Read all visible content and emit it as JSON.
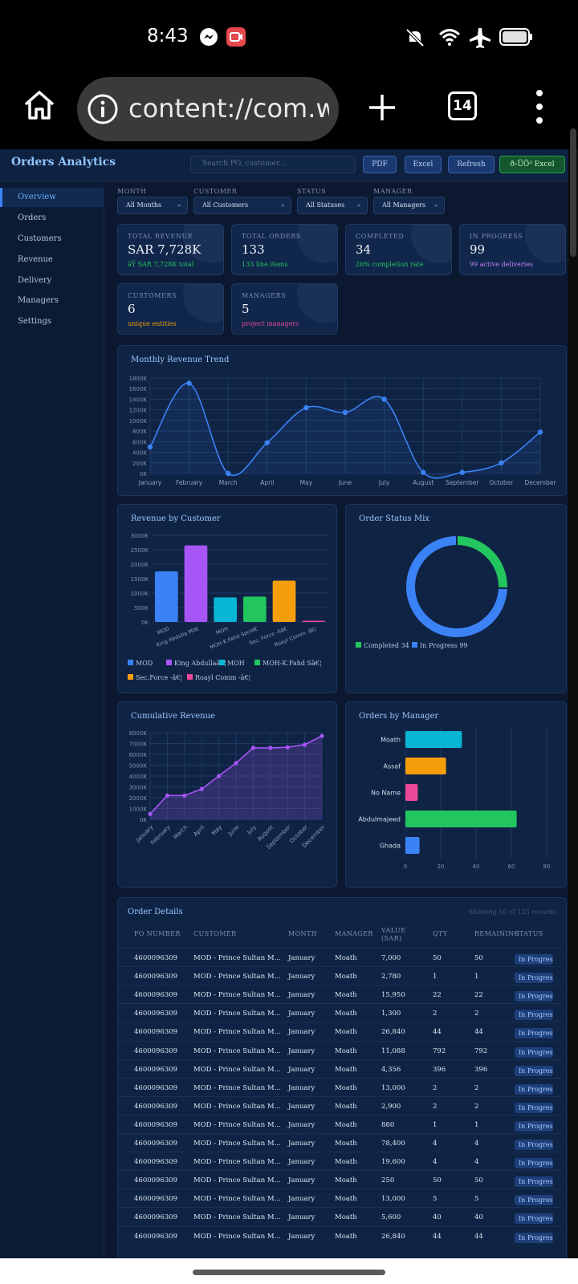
{
  "status_bar": {
    "time": "8:43"
  },
  "browser": {
    "url": "content://com.wh",
    "tab_count": "14"
  },
  "app": {
    "title": "Orders Analytics",
    "search_placeholder": "Search PO, customer...",
    "buttons": {
      "pdf": "PDF",
      "excel": "Excel",
      "refresh": "Refresh",
      "export_excel": "ð›ÜÖ³ Excel"
    }
  },
  "sidebar": {
    "items": [
      {
        "label": "Overview",
        "active": true
      },
      {
        "label": "Orders"
      },
      {
        "label": "Customers"
      },
      {
        "label": "Revenue"
      },
      {
        "label": "Delivery"
      },
      {
        "label": "Managers"
      },
      {
        "label": "Settings"
      }
    ]
  },
  "filters": {
    "month": {
      "label": "MONTH",
      "value": "All Months"
    },
    "customer": {
      "label": "CUSTOMER",
      "value": "All Customers"
    },
    "status": {
      "label": "STATUS",
      "value": "All Statuses"
    },
    "manager": {
      "label": "MANAGER",
      "value": "All Managers"
    }
  },
  "kpis": [
    {
      "label": "TOTAL REVENUE",
      "value": "SAR 7,728K",
      "sub": "âŸ SAR 7,728K total",
      "color": "#22c55e"
    },
    {
      "label": "TOTAL ORDERS",
      "value": "133",
      "sub": "133 line items",
      "color": "#22c55e"
    },
    {
      "label": "COMPLETED",
      "value": "34",
      "sub": "26% completion rate",
      "color": "#22c55e"
    },
    {
      "label": "IN PROGRESS",
      "value": "99",
      "sub": "99 active deliveries",
      "color": "#c084fc"
    },
    {
      "label": "CUSTOMERS",
      "value": "6",
      "sub": "unique entities",
      "color": "#f59e0b"
    },
    {
      "label": "MANAGERS",
      "value": "5",
      "sub": "project managers",
      "color": "#ec4899"
    }
  ],
  "chart_data": [
    {
      "type": "line",
      "title": "Monthly Revenue Trend",
      "x": [
        "January",
        "February",
        "March",
        "April",
        "May",
        "June",
        "July",
        "August",
        "September",
        "October",
        "December"
      ],
      "y": [
        500,
        1700,
        0,
        580,
        1240,
        1150,
        1400,
        20,
        20,
        200,
        780
      ],
      "yticks": [
        "0K",
        "200K",
        "400K",
        "600K",
        "800K",
        "1000K",
        "1200K",
        "1400K",
        "1600K",
        "1800K"
      ],
      "ylim": [
        0,
        1800
      ],
      "color": "#3b82f6"
    },
    {
      "type": "bar",
      "title": "Revenue by Customer",
      "categories": [
        "MOD",
        "King Abdulla Mil€",
        "MOH",
        "MOH-K.Fahd Spcld€",
        "Sec. Force -Sâ€",
        "Roayl Comm -â€¦"
      ],
      "values": [
        1750,
        2650,
        850,
        880,
        1430,
        40
      ],
      "colors": [
        "#3b82f6",
        "#a855f7",
        "#06b6d4",
        "#22c55e",
        "#f59e0b",
        "#ec4899"
      ],
      "yticks": [
        "0K",
        "500K",
        "1000K",
        "1500K",
        "2000K",
        "2500K",
        "3000K"
      ],
      "ylim": [
        0,
        3000
      ],
      "legend": [
        "MOD",
        "King Abdullaâ€¦",
        "MOH",
        "MOH-K.Fahd Sâ€¦",
        "Sec.Force -â€¦",
        "Roayl Comm -â€¦"
      ]
    },
    {
      "type": "pie",
      "title": "Order Status Mix",
      "labels": [
        "Completed",
        "In Progress"
      ],
      "values": [
        34,
        99
      ],
      "colors": [
        "#22c55e",
        "#3b82f6"
      ],
      "legend": [
        "Completed 34",
        "In Progress 99"
      ]
    },
    {
      "type": "area",
      "title": "Cumulative Revenue",
      "x": [
        "January",
        "February",
        "March",
        "April",
        "May",
        "June",
        "July",
        "August",
        "September",
        "October",
        "December"
      ],
      "y": [
        500,
        2200,
        2200,
        2800,
        4000,
        5200,
        6600,
        6600,
        6650,
        6900,
        7700
      ],
      "yticks": [
        "0K",
        "1000K",
        "2000K",
        "3000K",
        "4000K",
        "5000K",
        "6000K",
        "7000K",
        "8000K"
      ],
      "ylim": [
        0,
        8000
      ],
      "color": "#a855f7"
    },
    {
      "type": "bar",
      "orientation": "horizontal",
      "title": "Orders by Manager",
      "categories": [
        "Moath",
        "Assaf",
        "No Name",
        "Abdulmajeed",
        "Ghada"
      ],
      "values": [
        32,
        23,
        7,
        63,
        8
      ],
      "colors": [
        "#06b6d4",
        "#f59e0b",
        "#ec4899",
        "#22c55e",
        "#3b82f6"
      ],
      "xticks": [
        "0",
        "20",
        "40",
        "60",
        "80"
      ],
      "xlim": [
        0,
        80
      ]
    }
  ],
  "table": {
    "title": "Order Details",
    "meta": "Showing 50 of 133 records",
    "headers": [
      "PO NUMBER",
      "CUSTOMER",
      "MONTH",
      "MANAGER",
      "VALUE (SAR)",
      "QTY",
      "REMAINING",
      "STATUS"
    ],
    "rows": [
      [
        "4600096309",
        "MOD - Prince Sultan M...",
        "January",
        "Moath",
        "7,000",
        "50",
        "50",
        "In Progress"
      ],
      [
        "4600096309",
        "MOD - Prince Sultan M...",
        "January",
        "Moath",
        "2,780",
        "1",
        "1",
        "In Progress"
      ],
      [
        "4600096309",
        "MOD - Prince Sultan M...",
        "January",
        "Moath",
        "15,950",
        "22",
        "22",
        "In Progress"
      ],
      [
        "4600096309",
        "MOD - Prince Sultan M...",
        "January",
        "Moath",
        "1,300",
        "2",
        "2",
        "In Progress"
      ],
      [
        "4600096309",
        "MOD - Prince Sultan M...",
        "January",
        "Moath",
        "26,840",
        "44",
        "44",
        "In Progress"
      ],
      [
        "4600096309",
        "MOD - Prince Sultan M...",
        "January",
        "Moath",
        "11,088",
        "792",
        "792",
        "In Progress"
      ],
      [
        "4600096309",
        "MOD - Prince Sultan M...",
        "January",
        "Moath",
        "4,356",
        "396",
        "396",
        "In Progress"
      ],
      [
        "4600096309",
        "MOD - Prince Sultan M...",
        "January",
        "Moath",
        "13,000",
        "2",
        "2",
        "In Progress"
      ],
      [
        "4600096309",
        "MOD - Prince Sultan M...",
        "January",
        "Moath",
        "2,900",
        "2",
        "2",
        "In Progress"
      ],
      [
        "4600096309",
        "MOD - Prince Sultan M...",
        "January",
        "Moath",
        "880",
        "1",
        "1",
        "In Progress"
      ],
      [
        "4600096309",
        "MOD - Prince Sultan M...",
        "January",
        "Moath",
        "78,400",
        "4",
        "4",
        "In Progress"
      ],
      [
        "4600096309",
        "MOD - Prince Sultan M...",
        "January",
        "Moath",
        "19,600",
        "4",
        "4",
        "In Progress"
      ],
      [
        "4600096309",
        "MOD - Prince Sultan M...",
        "January",
        "Moath",
        "250",
        "50",
        "50",
        "In Progress"
      ],
      [
        "4600096309",
        "MOD - Prince Sultan M...",
        "January",
        "Moath",
        "13,000",
        "5",
        "5",
        "In Progress"
      ],
      [
        "4600096309",
        "MOD - Prince Sultan M...",
        "January",
        "Moath",
        "5,600",
        "40",
        "40",
        "In Progress"
      ],
      [
        "4600096309",
        "MOD - Prince Sultan M...",
        "January",
        "Moath",
        "26,840",
        "44",
        "44",
        "In Progress"
      ]
    ]
  }
}
